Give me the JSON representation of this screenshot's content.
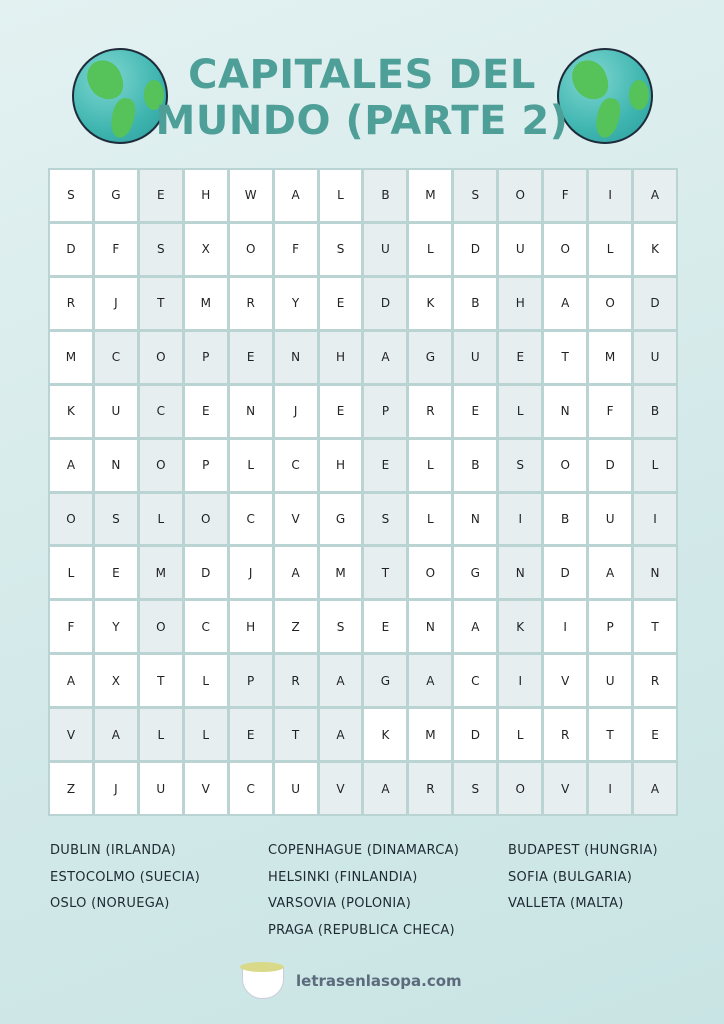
{
  "title": {
    "line1": "CAPITALES DEL",
    "line2": "MUNDO (PARTE 2)"
  },
  "colors": {
    "title": "#4e9f98",
    "highlight_cell": "#e6eef0",
    "cell": "#ffffff",
    "grid_border": "#b9d4d2"
  },
  "grid": {
    "rows": [
      "SGEHWALBMSOFIA",
      "DFSXOFSULDUOLK",
      "RJTMRYEDKBHAOD",
      "MCOPENHAGUETMU",
      "KUCENJEPRELNFB",
      "ANOPLCHELBSODL",
      "OSLOCVGSLNIBUI",
      "LEMDJAMTOGNDAN",
      "FYOCHZSENAKIPT",
      "AXTLPRAGACIVUR",
      "VALLETAKMDLRTE",
      "ZJUVCUVARSOVIA"
    ],
    "highlighted": [
      "..X....X.XXXXX",
      "..X....X......",
      "..X....X..X..X",
      ".XXXXXXXXXX..X",
      "..X....X..X..X",
      "..X....X..X..X",
      "XXXX...X..X..X",
      "..X....X..X..X",
      "..X.......X...",
      "....XXXXX.X...",
      "XXXXXXX.......",
      "......XXXXXXXX"
    ]
  },
  "word_list": {
    "col1": [
      "DUBLIN (IRLANDA)",
      "ESTOCOLMO (SUECIA)",
      "OSLO (NORUEGA)"
    ],
    "col2": [
      "COPENHAGUE (DINAMARCA)",
      "HELSINKI (FINLANDIA)",
      "VARSOVIA (POLONIA)",
      "PRAGA (REPUBLICA CHECA)"
    ],
    "col3": [
      "BUDAPEST (HUNGRIA)",
      "SOFIA (BULGARIA)",
      "VALLETA (MALTA)"
    ]
  },
  "footer": {
    "site": "letrasenlasopa.com",
    "logo_icon": "soup-bowl-icon"
  }
}
